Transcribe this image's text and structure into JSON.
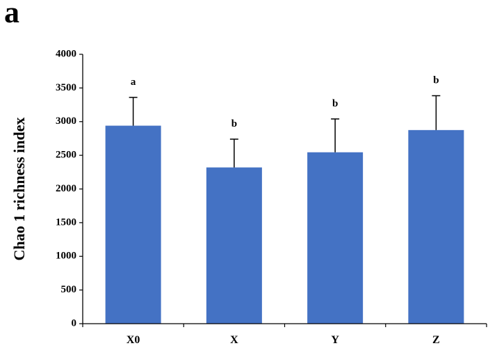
{
  "panel_label": "a",
  "chart_data": {
    "type": "bar",
    "title": "",
    "xlabel": "",
    "ylabel": "Chao 1 richness index",
    "ylim": [
      0,
      4000
    ],
    "yticks": [
      0,
      500,
      1000,
      1500,
      2000,
      2500,
      3000,
      3500,
      4000
    ],
    "categories": [
      "X0",
      "X",
      "Y",
      "Z"
    ],
    "values": [
      2940,
      2320,
      2545,
      2875
    ],
    "errors": [
      420,
      420,
      495,
      510
    ],
    "significance_letters": [
      "a",
      "b",
      "b",
      "b"
    ],
    "bar_color": "#4472C4",
    "grid": false,
    "legend": "none"
  }
}
